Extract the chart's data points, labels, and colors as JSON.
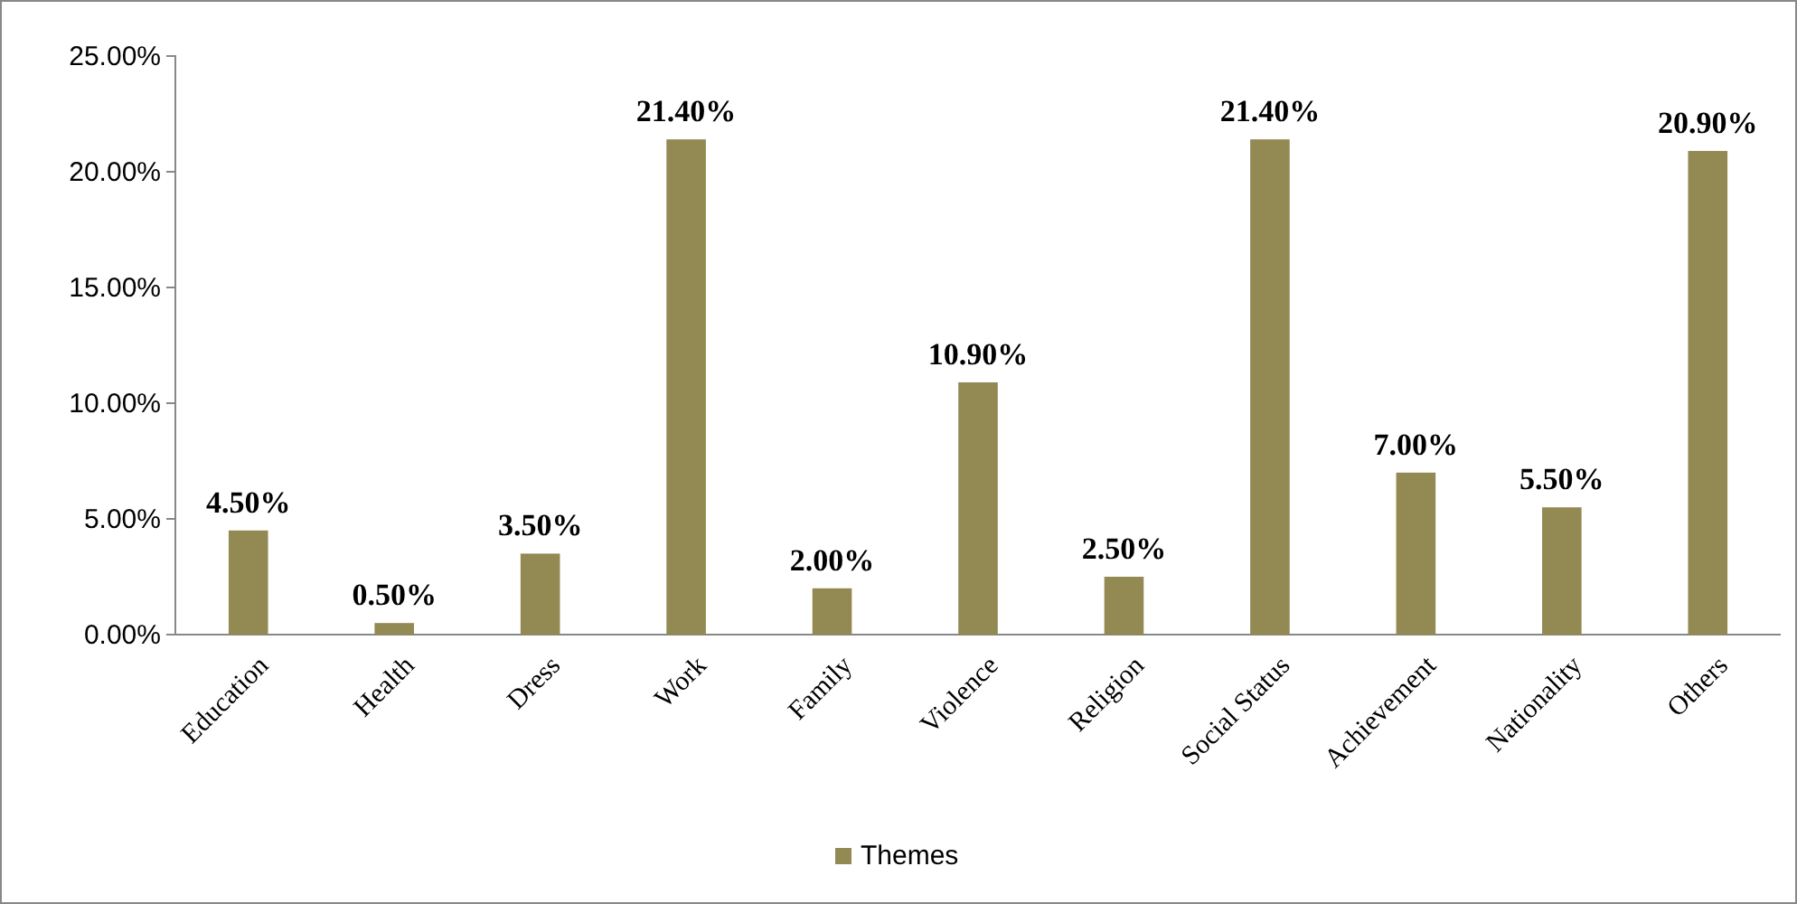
{
  "chart_data": {
    "type": "bar",
    "categories": [
      "Education",
      "Health",
      "Dress",
      "Work",
      "Family",
      "Violence",
      "Religion",
      "Social Status",
      "Achievement",
      "Nationality",
      "Others"
    ],
    "series": [
      {
        "name": "Themes",
        "color": "#938953",
        "values": [
          4.5,
          0.5,
          3.5,
          21.4,
          2.0,
          10.9,
          2.5,
          21.4,
          7.0,
          5.5,
          20.9
        ],
        "value_labels": [
          "4.50%",
          "0.50%",
          "3.50%",
          "21.40%",
          "2.00%",
          "10.90%",
          "2.50%",
          "21.40%",
          "7.00%",
          "5.50%",
          "20.90%"
        ]
      }
    ],
    "ylim": [
      0,
      25
    ],
    "yticks": [
      {
        "value": 0,
        "label": "0.00%"
      },
      {
        "value": 5,
        "label": "5.00%"
      },
      {
        "value": 10,
        "label": "10.00%"
      },
      {
        "value": 15,
        "label": "15.00%"
      },
      {
        "value": 20,
        "label": "20.00%"
      },
      {
        "value": 25,
        "label": "25.00%"
      }
    ],
    "grid": false,
    "legend": "bottom"
  }
}
